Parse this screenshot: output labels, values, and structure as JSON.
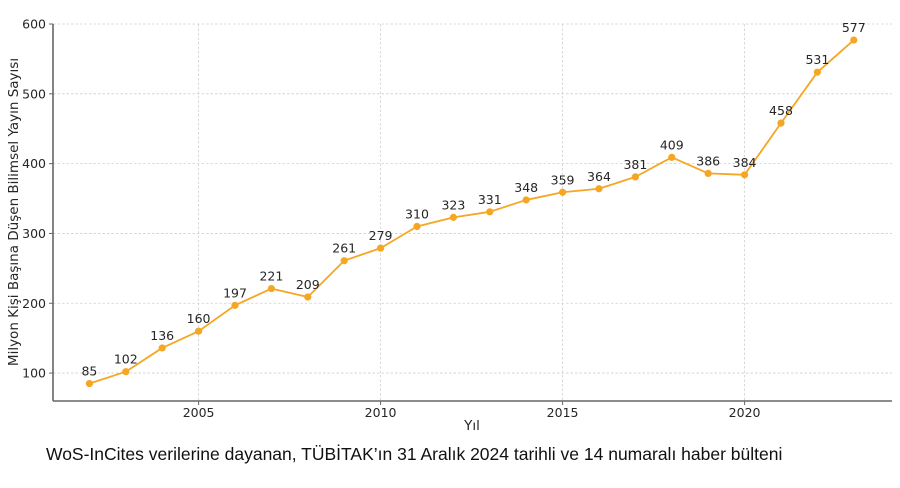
{
  "chart_data": {
    "type": "line",
    "title": "",
    "xlabel": "Yıl",
    "ylabel": "Milyon Kişi Başına Düşen Bilimsel Yayın Sayısı",
    "x": [
      2002,
      2003,
      2004,
      2005,
      2006,
      2007,
      2008,
      2009,
      2010,
      2011,
      2012,
      2013,
      2014,
      2015,
      2016,
      2017,
      2018,
      2019,
      2020,
      2021,
      2022,
      2023
    ],
    "series": [
      {
        "name": "Milyon Kişi Başına Düşen Bilimsel Yayın Sayısı",
        "color": "#f5a623",
        "values": [
          85,
          102,
          136,
          160,
          197,
          221,
          209,
          261,
          279,
          310,
          323,
          331,
          348,
          359,
          364,
          381,
          409,
          386,
          384,
          458,
          531,
          577
        ]
      }
    ],
    "xlim": [
      2001,
      2024.05
    ],
    "ylim": [
      60,
      600
    ],
    "xticks": [
      2005,
      2010,
      2015,
      2020
    ],
    "yticks": [
      100,
      200,
      300,
      400,
      500,
      600
    ],
    "grid": true,
    "data_labels": true,
    "legend": "none"
  },
  "caption": "WoS-InCites verilerine dayanan, TÜBİTAK’ın 31 Aralık 2024 tarihli ve 14 numaralı haber bülteni"
}
